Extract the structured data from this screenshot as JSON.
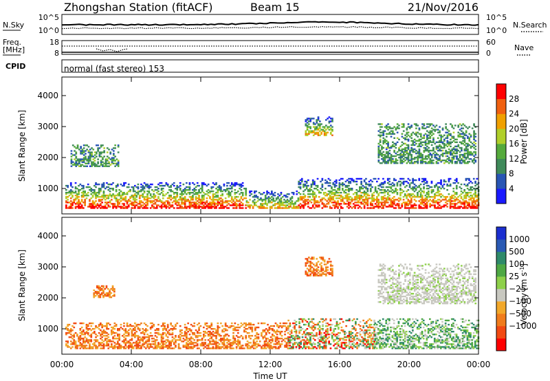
{
  "header": {
    "title": "Zhongshan Station (fitACF)",
    "beam": "Beam 15",
    "date": "21/Nov/2016"
  },
  "status_panels": {
    "nsky_label": "N.Sky",
    "nsearch_label": "N.Search",
    "noise_left_ticks": [
      "10^5",
      "10^0"
    ],
    "noise_right_ticks": [
      "10^5",
      "10^0"
    ],
    "freq_label_line1": "Freq.",
    "freq_label_line2": "[MHz]",
    "freq_ticks": [
      "18",
      "8"
    ],
    "nave_label": "Nave",
    "nave_ticks": [
      "60",
      "0"
    ],
    "cpid_label": "CPID",
    "cpid_text": "normal (fast stereo) 153"
  },
  "colors": {
    "power": [
      "#1a1aff",
      "#2855b4",
      "#3f8a5a",
      "#55aa3c",
      "#b0cf2a",
      "#f0a000",
      "#f06010",
      "#ff0000"
    ],
    "velocity": [
      "#ff0000",
      "#f24a12",
      "#f07c1c",
      "#f2a82a",
      "#c8c8c0",
      "#8ed04a",
      "#4ea844",
      "#2f8a6a",
      "#2a5ab4",
      "#1b2fd0"
    ]
  },
  "chart_data": [
    {
      "type": "heatmap",
      "title": "",
      "xlabel": "Time UT",
      "ylabel": "Slant Range [km]",
      "x_ticks": [
        "00:00",
        "04:00",
        "08:00",
        "12:00",
        "16:00",
        "20:00",
        "00:00"
      ],
      "xlim_hours": [
        0,
        24
      ],
      "y_ticks": [
        "1000",
        "2000",
        "3000",
        "4000"
      ],
      "ylim": [
        180,
        4600
      ],
      "colorbar_label": "Power [dB]",
      "colorbar_ticks": [
        "4",
        "8",
        "12",
        "16",
        "20",
        "24",
        "28"
      ],
      "colorbar_range": [
        0,
        32
      ],
      "echo_regions": [
        {
          "t0": 0.2,
          "t1": 10.6,
          "r0": 350,
          "r1": 1200,
          "level": "high"
        },
        {
          "t0": 10.6,
          "t1": 13.6,
          "r0": 350,
          "r1": 900,
          "level": "mid"
        },
        {
          "t0": 13.6,
          "t1": 24.0,
          "r0": 350,
          "r1": 1300,
          "level": "high"
        },
        {
          "t0": 14.0,
          "t1": 15.6,
          "r0": 2700,
          "r1": 3300,
          "level": "mid"
        },
        {
          "t0": 18.2,
          "t1": 23.8,
          "r0": 1800,
          "r1": 3100,
          "level": "low"
        },
        {
          "t0": 0.5,
          "t1": 3.2,
          "r0": 1700,
          "r1": 2400,
          "level": "low"
        }
      ]
    },
    {
      "type": "heatmap",
      "title": "",
      "xlabel": "Time UT",
      "ylabel": "Slant Range [km]",
      "x_ticks": [
        "00:00",
        "04:00",
        "08:00",
        "12:00",
        "16:00",
        "20:00",
        "00:00"
      ],
      "xlim_hours": [
        0,
        24
      ],
      "y_ticks": [
        "1000",
        "2000",
        "3000",
        "4000"
      ],
      "ylim": [
        180,
        4600
      ],
      "colorbar_label": "Velocity [m s",
      "colorbar_label_sup": "-1",
      "colorbar_ticks": [
        "1000",
        "500",
        "100",
        "25",
        "−25",
        "−100",
        "−500",
        "−1000"
      ],
      "echo_regions": [
        {
          "t0": 0.2,
          "t1": 13.0,
          "r0": 350,
          "r1": 1200,
          "level": "neg"
        },
        {
          "t0": 13.0,
          "t1": 18.0,
          "r0": 350,
          "r1": 1300,
          "level": "mixed"
        },
        {
          "t0": 18.0,
          "t1": 24.0,
          "r0": 350,
          "r1": 1300,
          "level": "pos"
        },
        {
          "t0": 14.0,
          "t1": 15.6,
          "r0": 2700,
          "r1": 3300,
          "level": "neg"
        },
        {
          "t0": 18.2,
          "t1": 23.8,
          "r0": 1800,
          "r1": 3100,
          "level": "zero"
        },
        {
          "t0": 1.8,
          "t1": 3.0,
          "r0": 2000,
          "r1": 2400,
          "level": "neg"
        }
      ]
    }
  ]
}
